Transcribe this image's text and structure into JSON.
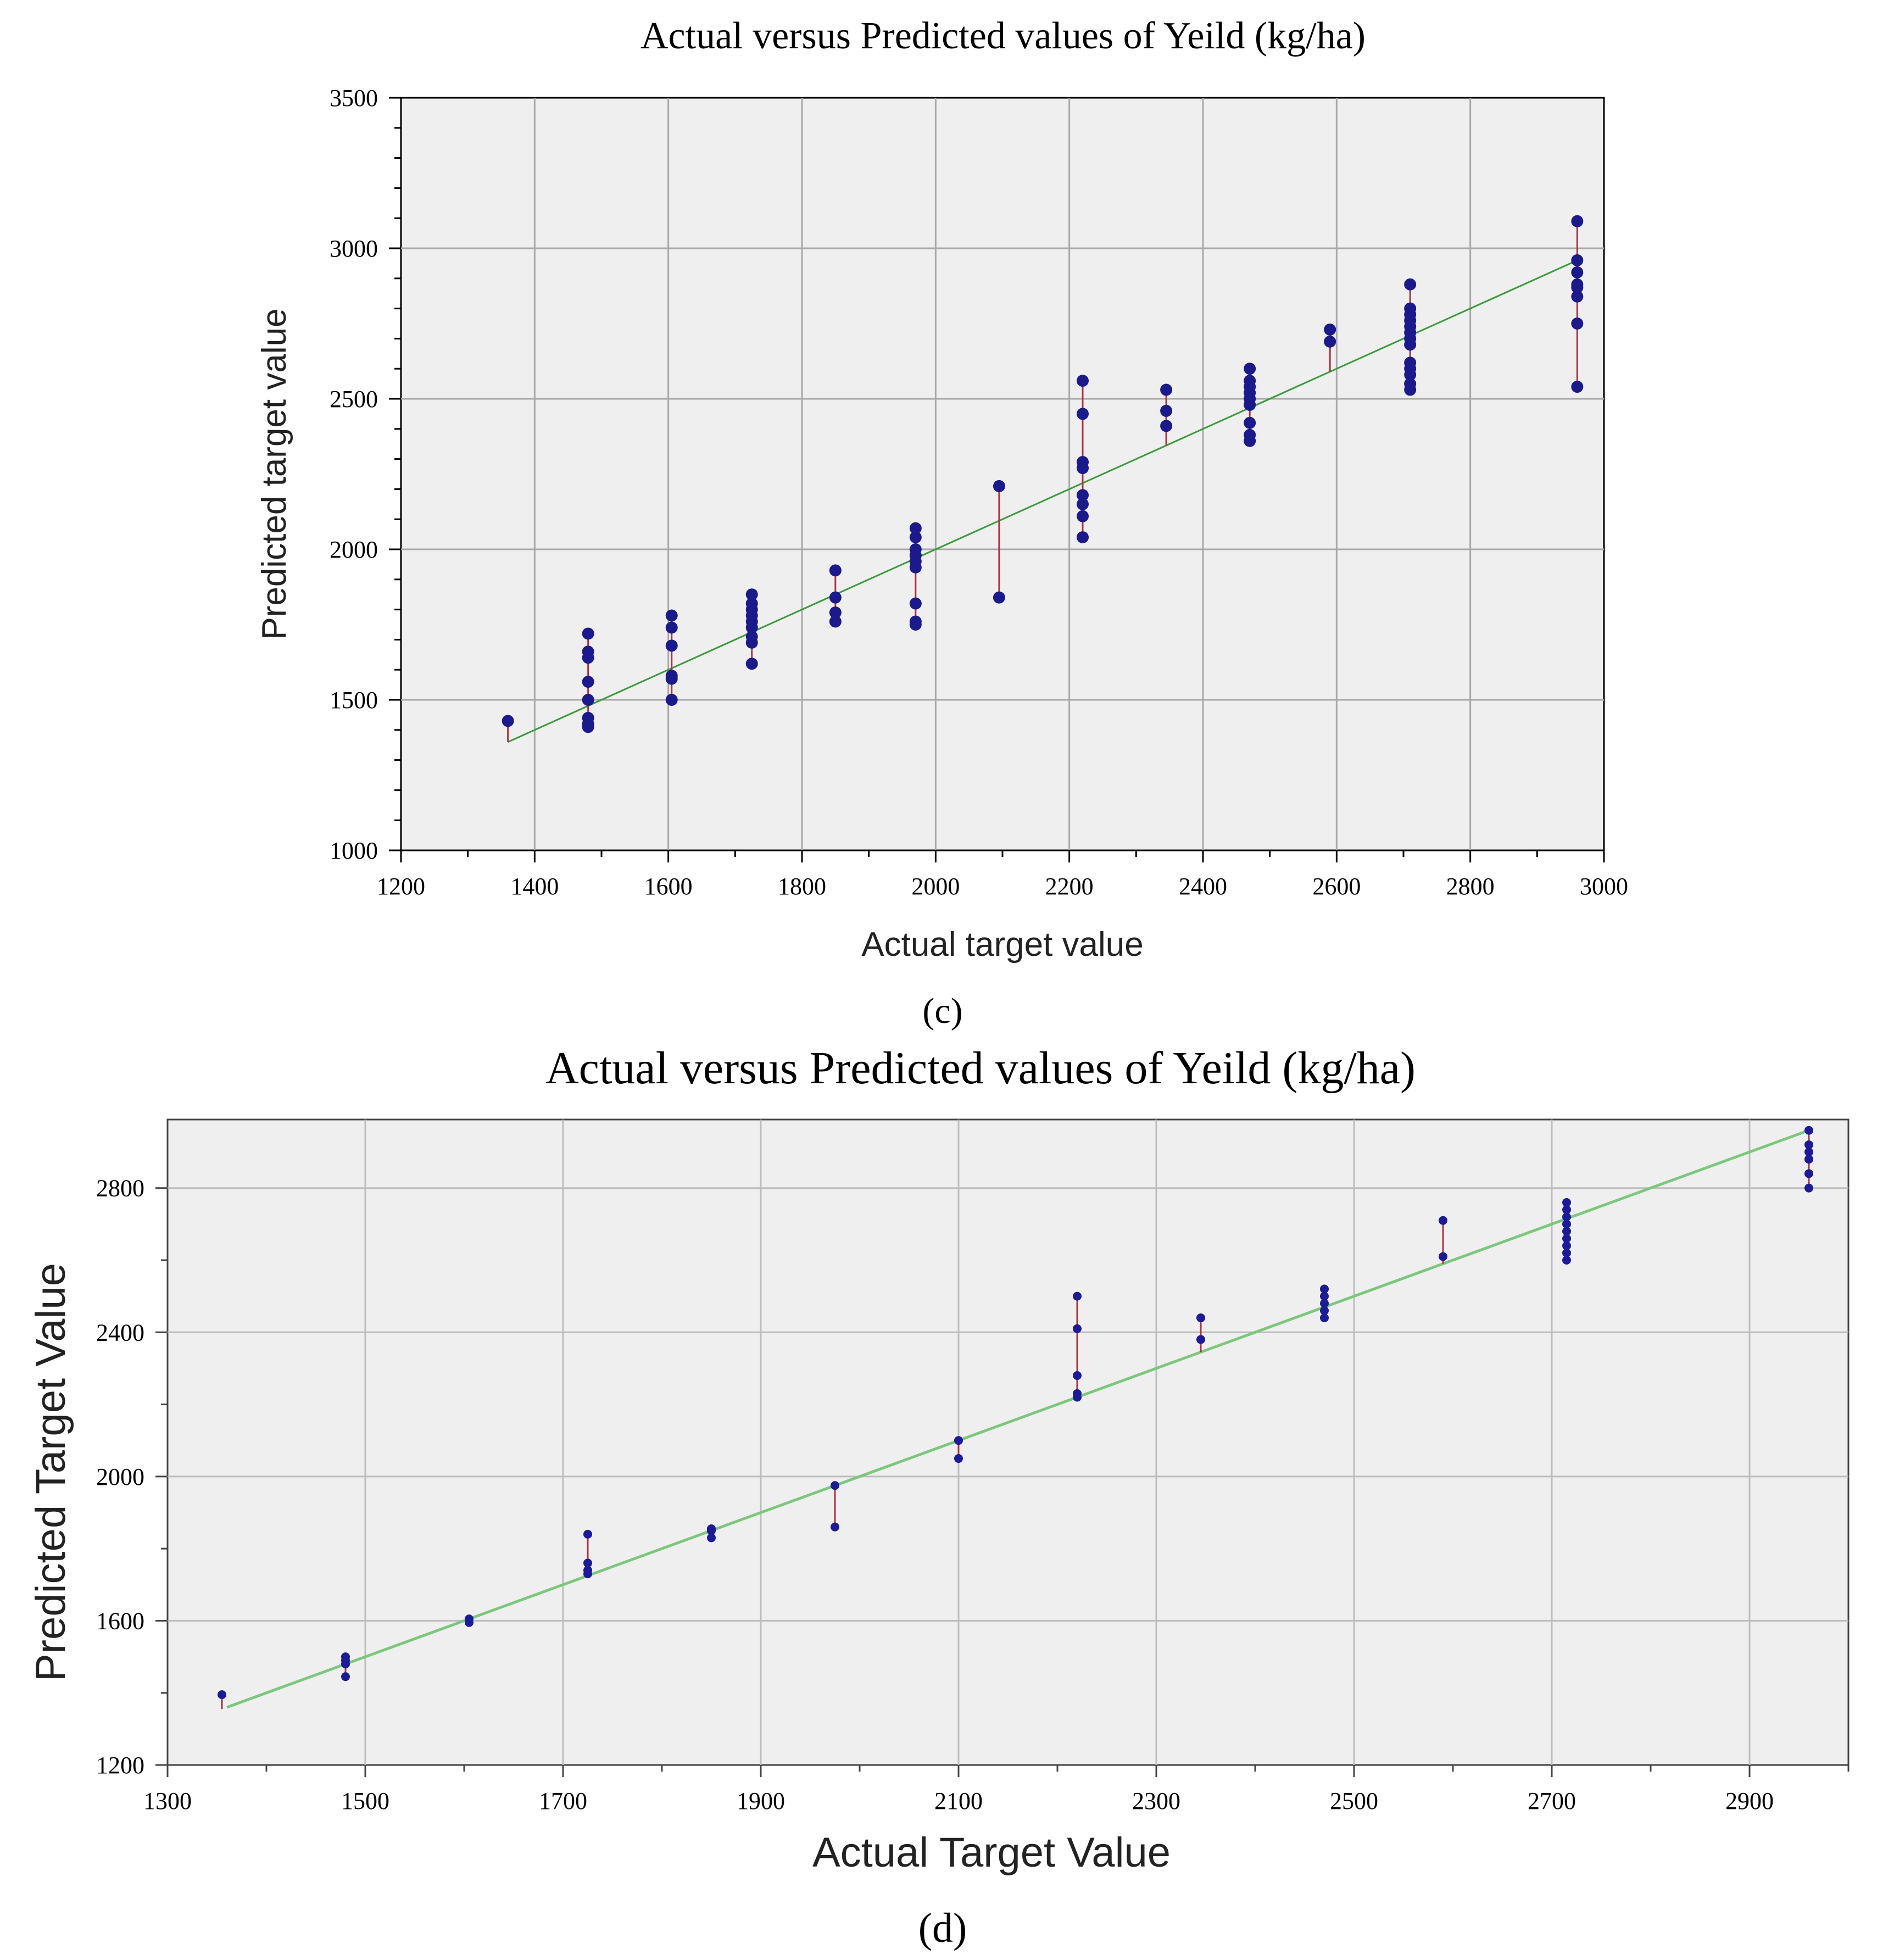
{
  "chart_data": [
    {
      "panel_label": "(c)",
      "type": "scatter",
      "title": "Actual versus Predicted values of Yeild (kg/ha)",
      "xlabel": "Actual target value",
      "ylabel": "Predicted target value",
      "xlim": [
        1200,
        3000
      ],
      "ylim": [
        1000,
        3500
      ],
      "xticks": [
        1200,
        1400,
        1600,
        1800,
        2000,
        2200,
        2400,
        2600,
        2800,
        3000
      ],
      "yticks": [
        1000,
        1500,
        2000,
        2500,
        3000,
        3500
      ],
      "grid": true,
      "fit_line": [
        [
          1360,
          1360
        ],
        [
          2960,
          2960
        ]
      ],
      "points": [
        {
          "x": 1360,
          "y": [
            1430
          ]
        },
        {
          "x": 1480,
          "y": [
            1410,
            1420,
            1440,
            1500,
            1560,
            1640,
            1660,
            1720
          ]
        },
        {
          "x": 1605,
          "y": [
            1500,
            1570,
            1580,
            1680,
            1740,
            1780
          ]
        },
        {
          "x": 1725,
          "y": [
            1620,
            1690,
            1710,
            1740,
            1760,
            1780,
            1800,
            1820,
            1850
          ]
        },
        {
          "x": 1850,
          "y": [
            1760,
            1790,
            1840,
            1930
          ]
        },
        {
          "x": 1970,
          "y": [
            1750,
            1760,
            1820,
            1940,
            1960,
            1980,
            2000,
            2040,
            2070
          ]
        },
        {
          "x": 2095,
          "y": [
            1840,
            2210
          ]
        },
        {
          "x": 2220,
          "y": [
            2040,
            2110,
            2150,
            2180,
            2270,
            2290,
            2450,
            2560
          ]
        },
        {
          "x": 2345,
          "y": [
            2410,
            2460,
            2530
          ]
        },
        {
          "x": 2470,
          "y": [
            2360,
            2380,
            2420,
            2480,
            2500,
            2520,
            2540,
            2560,
            2600
          ]
        },
        {
          "x": 2590,
          "y": [
            2690,
            2730
          ]
        },
        {
          "x": 2710,
          "y": [
            2530,
            2550,
            2580,
            2600,
            2620,
            2680,
            2700,
            2720,
            2740,
            2760,
            2780,
            2800,
            2880
          ]
        },
        {
          "x": 2960,
          "y": [
            2540,
            2750,
            2840,
            2870,
            2880,
            2920,
            2960,
            3090
          ]
        }
      ]
    },
    {
      "panel_label": "(d)",
      "type": "scatter",
      "title": "Actual versus Predicted values of Yeild  (kg/ha)",
      "xlabel": "Actual Target Value",
      "ylabel": "Predicted Target Value",
      "xlim": [
        1300,
        3000
      ],
      "ylim": [
        1200,
        2990
      ],
      "xticks": [
        1300,
        1500,
        1700,
        1900,
        2100,
        2300,
        2500,
        2700,
        2900
      ],
      "yticks": [
        1200,
        1600,
        2000,
        2400,
        2800
      ],
      "grid": true,
      "fit_line": [
        [
          1360,
          1360
        ],
        [
          2960,
          2960
        ]
      ],
      "points": [
        {
          "x": 1355,
          "y": [
            1395
          ]
        },
        {
          "x": 1480,
          "y": [
            1445,
            1480,
            1490,
            1500
          ]
        },
        {
          "x": 1605,
          "y": [
            1595,
            1605
          ]
        },
        {
          "x": 1725,
          "y": [
            1730,
            1740,
            1760,
            1840
          ]
        },
        {
          "x": 1850,
          "y": [
            1830,
            1850,
            1855
          ]
        },
        {
          "x": 1975,
          "y": [
            1860,
            1975
          ]
        },
        {
          "x": 2100,
          "y": [
            2050,
            2100
          ]
        },
        {
          "x": 2220,
          "y": [
            2220,
            2230,
            2280,
            2410,
            2500
          ]
        },
        {
          "x": 2345,
          "y": [
            2380,
            2440
          ]
        },
        {
          "x": 2470,
          "y": [
            2440,
            2460,
            2480,
            2500,
            2520
          ]
        },
        {
          "x": 2590,
          "y": [
            2610,
            2710
          ]
        },
        {
          "x": 2715,
          "y": [
            2600,
            2620,
            2640,
            2660,
            2680,
            2700,
            2720,
            2740,
            2760
          ]
        },
        {
          "x": 2960,
          "y": [
            2800,
            2840,
            2880,
            2900,
            2920,
            2960
          ]
        }
      ]
    }
  ]
}
